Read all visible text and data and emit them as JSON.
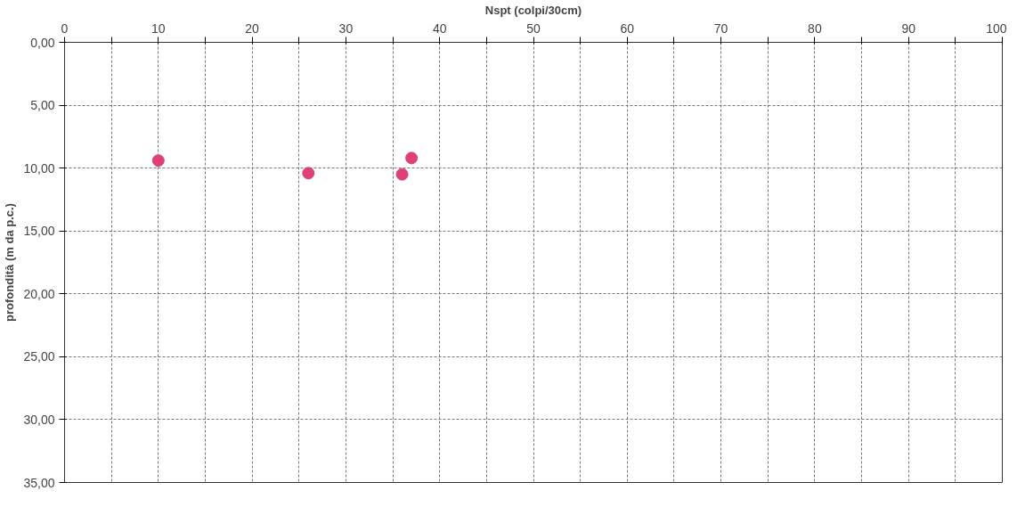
{
  "chart_data": {
    "type": "scatter",
    "xlabel": "Nspt (colpi/30cm)",
    "ylabel": "profondità (m da p.c.)",
    "x": [
      10,
      26,
      36,
      37
    ],
    "series": [
      {
        "color": "#e0407a",
        "values": [
          9.4,
          10.4,
          10.5,
          9.2
        ]
      }
    ],
    "xlim": [
      0,
      100
    ],
    "xticks": [
      0,
      {
        "value": 5,
        "label": null
      },
      10,
      {
        "value": 15,
        "label": null
      },
      20,
      {
        "value": 25,
        "label": null
      },
      30,
      {
        "value": 35,
        "label": null
      },
      40,
      {
        "value": 45,
        "label": null
      },
      50,
      {
        "value": 55,
        "label": null
      },
      60,
      {
        "value": 65,
        "label": null
      },
      70,
      {
        "value": 75,
        "label": null
      },
      80,
      {
        "value": 85,
        "label": null
      },
      90,
      {
        "value": 95,
        "label": null
      },
      100
    ],
    "ylim": [
      35,
      0
    ],
    "yticks": [
      {
        "value": 0,
        "label": "0,00"
      },
      {
        "value": 5,
        "label": "5,00"
      },
      {
        "value": 10,
        "label": "10,00"
      },
      {
        "value": 15,
        "label": "15,00"
      },
      {
        "value": 20,
        "label": "20,00"
      },
      {
        "value": 25,
        "label": "25,00"
      },
      {
        "value": 30,
        "label": "30,00"
      },
      {
        "value": 35,
        "label": "35,00"
      }
    ],
    "grid": true,
    "marker": "circle"
  }
}
